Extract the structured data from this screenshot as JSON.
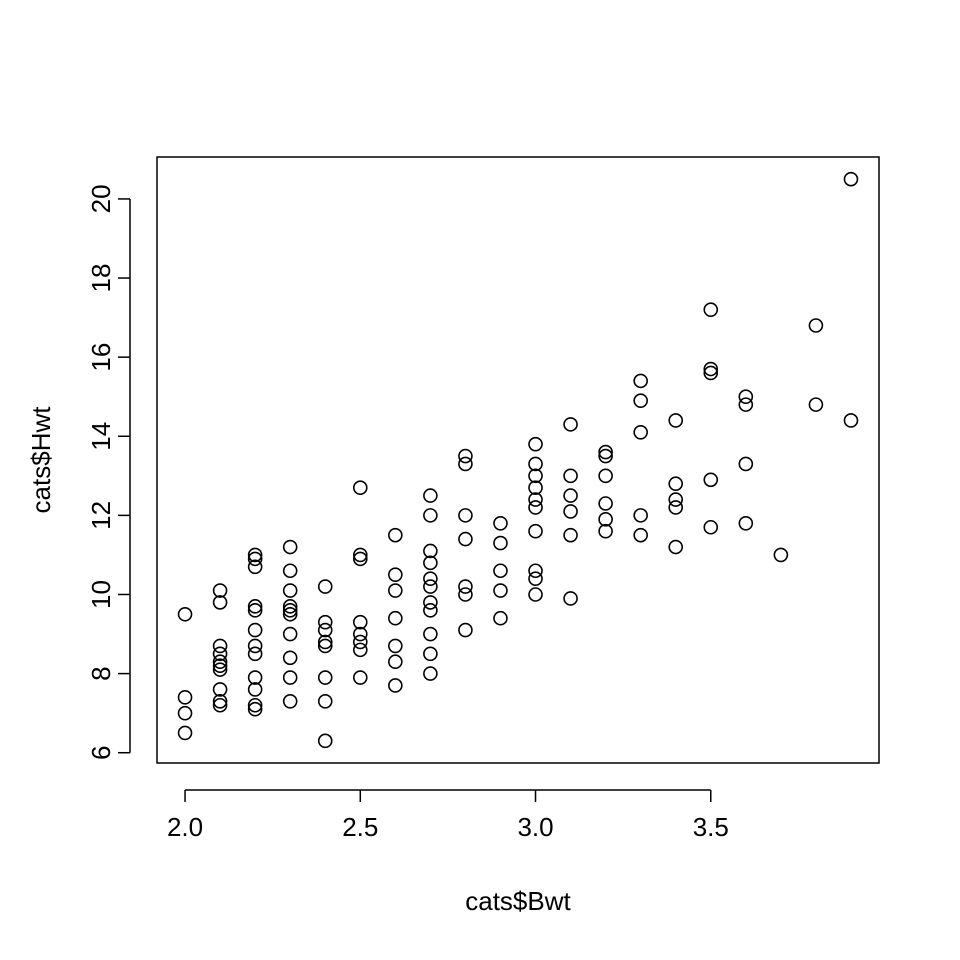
{
  "chart_data": {
    "type": "scatter",
    "title": "",
    "xlabel": "cats$Bwt",
    "ylabel": "cats$Hwt",
    "xlim": [
      1.92,
      3.98
    ],
    "ylim": [
      5.74,
      21.06
    ],
    "x_ticks": [
      2.0,
      2.5,
      3.0,
      3.5
    ],
    "x_tick_labels": [
      "2.0",
      "2.5",
      "3.0",
      "3.5"
    ],
    "y_ticks": [
      6,
      8,
      10,
      12,
      14,
      16,
      18,
      20
    ],
    "y_tick_labels": [
      "6",
      "8",
      "10",
      "12",
      "14",
      "16",
      "18",
      "20"
    ],
    "grid": false,
    "legend": "none",
    "marker": "open-circle",
    "series": [
      {
        "points": [
          [
            2.0,
            6.5
          ],
          [
            2.0,
            7.0
          ],
          [
            2.0,
            7.4
          ],
          [
            2.0,
            9.5
          ],
          [
            2.1,
            7.2
          ],
          [
            2.1,
            7.3
          ],
          [
            2.1,
            7.6
          ],
          [
            2.1,
            8.1
          ],
          [
            2.1,
            8.2
          ],
          [
            2.1,
            8.3
          ],
          [
            2.1,
            8.5
          ],
          [
            2.1,
            8.7
          ],
          [
            2.1,
            9.8
          ],
          [
            2.1,
            10.1
          ],
          [
            2.2,
            7.1
          ],
          [
            2.2,
            7.2
          ],
          [
            2.2,
            7.6
          ],
          [
            2.2,
            7.9
          ],
          [
            2.2,
            8.5
          ],
          [
            2.2,
            8.7
          ],
          [
            2.2,
            9.1
          ],
          [
            2.2,
            9.6
          ],
          [
            2.2,
            9.7
          ],
          [
            2.2,
            10.7
          ],
          [
            2.2,
            10.9
          ],
          [
            2.2,
            11.0
          ],
          [
            2.3,
            7.3
          ],
          [
            2.3,
            7.9
          ],
          [
            2.3,
            8.4
          ],
          [
            2.3,
            9.0
          ],
          [
            2.3,
            9.5
          ],
          [
            2.3,
            9.6
          ],
          [
            2.3,
            9.7
          ],
          [
            2.3,
            10.1
          ],
          [
            2.3,
            10.6
          ],
          [
            2.3,
            11.2
          ],
          [
            2.4,
            6.3
          ],
          [
            2.4,
            7.3
          ],
          [
            2.4,
            7.9
          ],
          [
            2.4,
            8.7
          ],
          [
            2.4,
            8.8
          ],
          [
            2.4,
            9.1
          ],
          [
            2.4,
            9.3
          ],
          [
            2.4,
            10.2
          ],
          [
            2.5,
            7.9
          ],
          [
            2.5,
            8.6
          ],
          [
            2.5,
            8.8
          ],
          [
            2.5,
            9.0
          ],
          [
            2.5,
            9.3
          ],
          [
            2.5,
            10.9
          ],
          [
            2.5,
            11.0
          ],
          [
            2.5,
            12.7
          ],
          [
            2.6,
            7.7
          ],
          [
            2.6,
            8.3
          ],
          [
            2.6,
            8.7
          ],
          [
            2.6,
            9.4
          ],
          [
            2.6,
            10.1
          ],
          [
            2.6,
            10.5
          ],
          [
            2.6,
            11.5
          ],
          [
            2.7,
            8.0
          ],
          [
            2.7,
            8.5
          ],
          [
            2.7,
            9.0
          ],
          [
            2.7,
            9.6
          ],
          [
            2.7,
            9.8
          ],
          [
            2.7,
            10.2
          ],
          [
            2.7,
            10.4
          ],
          [
            2.7,
            10.8
          ],
          [
            2.7,
            11.1
          ],
          [
            2.7,
            12.0
          ],
          [
            2.7,
            12.5
          ],
          [
            2.8,
            9.1
          ],
          [
            2.8,
            10.0
          ],
          [
            2.8,
            10.2
          ],
          [
            2.8,
            11.4
          ],
          [
            2.8,
            12.0
          ],
          [
            2.8,
            13.3
          ],
          [
            2.8,
            13.5
          ],
          [
            2.9,
            9.4
          ],
          [
            2.9,
            10.1
          ],
          [
            2.9,
            10.6
          ],
          [
            2.9,
            11.3
          ],
          [
            2.9,
            11.8
          ],
          [
            3.0,
            10.0
          ],
          [
            3.0,
            10.4
          ],
          [
            3.0,
            10.6
          ],
          [
            3.0,
            11.6
          ],
          [
            3.0,
            12.2
          ],
          [
            3.0,
            12.4
          ],
          [
            3.0,
            12.7
          ],
          [
            3.0,
            13.0
          ],
          [
            3.0,
            13.3
          ],
          [
            3.0,
            13.8
          ],
          [
            3.1,
            9.9
          ],
          [
            3.1,
            11.5
          ],
          [
            3.1,
            12.1
          ],
          [
            3.1,
            12.5
          ],
          [
            3.1,
            13.0
          ],
          [
            3.1,
            14.3
          ],
          [
            3.2,
            11.6
          ],
          [
            3.2,
            11.9
          ],
          [
            3.2,
            12.3
          ],
          [
            3.2,
            13.0
          ],
          [
            3.2,
            13.5
          ],
          [
            3.2,
            13.6
          ],
          [
            3.3,
            11.5
          ],
          [
            3.3,
            12.0
          ],
          [
            3.3,
            14.1
          ],
          [
            3.3,
            14.9
          ],
          [
            3.3,
            15.4
          ],
          [
            3.4,
            11.2
          ],
          [
            3.4,
            12.2
          ],
          [
            3.4,
            12.4
          ],
          [
            3.4,
            12.8
          ],
          [
            3.4,
            14.4
          ],
          [
            3.5,
            11.7
          ],
          [
            3.5,
            12.9
          ],
          [
            3.5,
            15.6
          ],
          [
            3.5,
            15.7
          ],
          [
            3.5,
            17.2
          ],
          [
            3.6,
            11.8
          ],
          [
            3.6,
            13.3
          ],
          [
            3.6,
            14.8
          ],
          [
            3.6,
            15.0
          ],
          [
            3.7,
            11.0
          ],
          [
            3.8,
            14.8
          ],
          [
            3.8,
            16.8
          ],
          [
            3.9,
            14.4
          ],
          [
            3.9,
            20.5
          ]
        ]
      }
    ]
  }
}
